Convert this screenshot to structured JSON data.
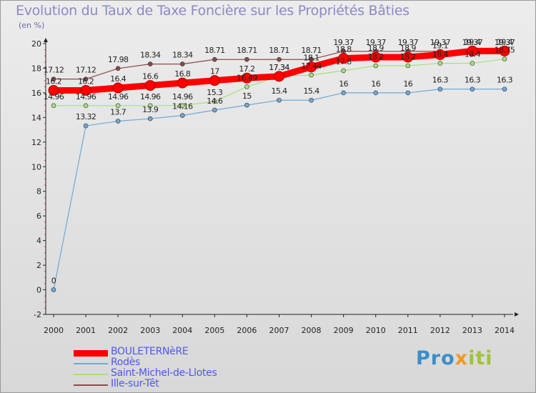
{
  "title": "Evolution du Taux de Taxe Foncière sur les Propriétés Bâties",
  "unit_label": "(en %)",
  "logo": {
    "part1": "Pro",
    "part2": "x",
    "part3": "iti"
  },
  "chart_data": {
    "type": "line",
    "title": "Evolution du Taux de Taxe Foncière sur les Propriétés Bâties",
    "ylabel": "(en %)",
    "xlabel": "",
    "x": [
      2000,
      2001,
      2002,
      2003,
      2004,
      2005,
      2006,
      2007,
      2008,
      2009,
      2010,
      2011,
      2012,
      2013,
      2014
    ],
    "ylim": [
      -2,
      20
    ],
    "yticks": [
      -2,
      0,
      2,
      4,
      6,
      8,
      10,
      12,
      14,
      16,
      18,
      20
    ],
    "grid": false,
    "legend_position": "bottom-left",
    "series": [
      {
        "name": "BOULETERNèRE",
        "color": "#ff0000",
        "values": [
          16.2,
          16.2,
          16.4,
          16.6,
          16.8,
          17,
          17.2,
          17.34,
          18.1,
          18.8,
          18.9,
          18.9,
          19.1,
          19.4,
          19.4
        ],
        "labels": [
          "16.2",
          "16.2",
          "16.4",
          "16.6",
          "16.8",
          "17",
          "17.2",
          "17.34",
          "18.1",
          "18.8",
          "18.9",
          "18.9",
          "19.1",
          "19.4",
          "19.4"
        ]
      },
      {
        "name": "Rodès",
        "color": "#6fa8d6",
        "values": [
          0,
          13.32,
          13.7,
          13.9,
          14.16,
          14.6,
          15,
          15.4,
          15.4,
          16,
          16,
          16,
          16.3,
          16.3,
          16.3
        ],
        "labels": [
          "0",
          "13.32",
          "13.7",
          "13.9",
          "14.16",
          "14.6",
          "15",
          "15.4",
          "15.4",
          "16",
          "16",
          "16",
          "16.3",
          "16.3",
          "16.3"
        ]
      },
      {
        "name": "Saint-Michel-de-Llotes",
        "color": "#a6e07a",
        "values": [
          14.96,
          14.96,
          14.96,
          14.96,
          14.96,
          15.3,
          16.49,
          17.34,
          17.44,
          17.8,
          18.2,
          18.2,
          18.4,
          18.4,
          18.75
        ],
        "labels": [
          "14.96",
          "14.96",
          "14.96",
          "14.96",
          "14.96",
          "15.3",
          "16.49",
          "17.34",
          "17.44",
          "17.8",
          "18.2",
          "18.2",
          "18.4",
          "18.4",
          "18.75"
        ]
      },
      {
        "name": "Ille-sur-Têt",
        "color": "#8b4a4a",
        "values": [
          17.12,
          17.12,
          17.98,
          18.34,
          18.34,
          18.71,
          18.71,
          18.71,
          18.71,
          19.37,
          19.37,
          19.37,
          19.37,
          19.37,
          19.37
        ],
        "labels": [
          "17.12",
          "17.12",
          "17.98",
          "18.34",
          "18.34",
          "18.71",
          "18.71",
          "18.71",
          "18.71",
          "19.37",
          "19.37",
          "19.37",
          "19.37",
          "19.37",
          "19.37"
        ]
      }
    ]
  }
}
